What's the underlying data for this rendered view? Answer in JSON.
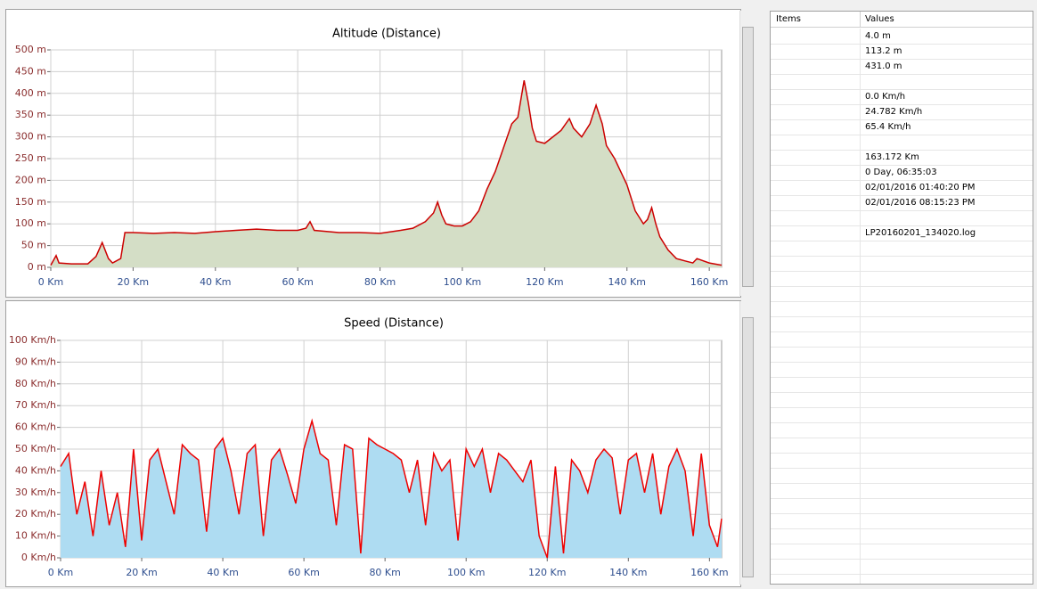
{
  "chart_data": [
    {
      "type": "area",
      "title": "Altitude (Distance)",
      "line_color": "#cc0000",
      "fill_color": "#d4dec6",
      "grid": true,
      "x": [
        0,
        1.3,
        2,
        5,
        9,
        11,
        12.5,
        14,
        15,
        17,
        18,
        20,
        25,
        30,
        35,
        40,
        45,
        50,
        55,
        60,
        62,
        63,
        64,
        70,
        75,
        80,
        85,
        88,
        91,
        93,
        94,
        95,
        96,
        98,
        100,
        102,
        104,
        106,
        108,
        110,
        112,
        113.5,
        115,
        116,
        117,
        118,
        120,
        122,
        124,
        126,
        127,
        129,
        131,
        132.5,
        134,
        135,
        137,
        138,
        140,
        142,
        144,
        145,
        146,
        147,
        148,
        150,
        152,
        154,
        156,
        157,
        160,
        163
      ],
      "values": [
        5,
        27,
        10,
        8,
        8,
        25,
        57,
        20,
        10,
        20,
        80,
        80,
        78,
        80,
        78,
        82,
        85,
        88,
        85,
        85,
        90,
        105,
        85,
        80,
        80,
        78,
        85,
        90,
        105,
        125,
        150,
        120,
        100,
        95,
        95,
        105,
        130,
        180,
        220,
        275,
        330,
        345,
        430,
        380,
        320,
        290,
        285,
        300,
        315,
        342,
        320,
        300,
        330,
        373,
        330,
        280,
        250,
        230,
        190,
        130,
        100,
        110,
        137,
        100,
        70,
        40,
        20,
        15,
        10,
        20,
        10,
        5
      ],
      "xlim": [
        0,
        163
      ],
      "ylim": [
        0,
        500
      ],
      "xticks": [
        {
          "value": 0,
          "label": "0 Km"
        },
        {
          "value": 20,
          "label": "20 Km"
        },
        {
          "value": 40,
          "label": "40 Km"
        },
        {
          "value": 60,
          "label": "60 Km"
        },
        {
          "value": 80,
          "label": "80 Km"
        },
        {
          "value": 100,
          "label": "100 Km"
        },
        {
          "value": 120,
          "label": "120 Km"
        },
        {
          "value": 140,
          "label": "140 Km"
        },
        {
          "value": 160,
          "label": "160 Km"
        }
      ],
      "yticks": [
        {
          "value": 0,
          "label": "0 m"
        },
        {
          "value": 50,
          "label": "50 m"
        },
        {
          "value": 100,
          "label": "100 m"
        },
        {
          "value": 150,
          "label": "150 m"
        },
        {
          "value": 200,
          "label": "200 m"
        },
        {
          "value": 250,
          "label": "250 m"
        },
        {
          "value": 300,
          "label": "300 m"
        },
        {
          "value": 350,
          "label": "350 m"
        },
        {
          "value": 400,
          "label": "400 m"
        },
        {
          "value": 450,
          "label": "450 m"
        },
        {
          "value": 500,
          "label": "500 m"
        }
      ]
    },
    {
      "type": "area",
      "title": "Speed (Distance)",
      "line_color": "#ee0000",
      "fill_color": "#aedcf2",
      "grid": true,
      "x": [
        0,
        2,
        4,
        6,
        8,
        10,
        12,
        14,
        16,
        18,
        20,
        22,
        24,
        26,
        28,
        30,
        32,
        34,
        36,
        38,
        40,
        42,
        44,
        46,
        48,
        50,
        52,
        54,
        56,
        58,
        60,
        62,
        64,
        66,
        68,
        70,
        72,
        74,
        76,
        78,
        80,
        82,
        84,
        86,
        88,
        90,
        92,
        94,
        96,
        98,
        100,
        102,
        104,
        106,
        108,
        110,
        112,
        114,
        116,
        118,
        120,
        122,
        124,
        126,
        128,
        130,
        132,
        134,
        136,
        138,
        140,
        142,
        144,
        146,
        148,
        150,
        152,
        154,
        156,
        158,
        160,
        162,
        163
      ],
      "values": [
        42,
        48,
        20,
        35,
        10,
        40,
        15,
        30,
        5,
        50,
        8,
        45,
        50,
        35,
        20,
        52,
        48,
        45,
        12,
        50,
        55,
        40,
        20,
        48,
        52,
        10,
        45,
        50,
        38,
        25,
        50,
        63,
        48,
        45,
        15,
        52,
        50,
        2,
        55,
        52,
        50,
        48,
        45,
        30,
        45,
        15,
        48,
        40,
        45,
        8,
        50,
        42,
        50,
        30,
        48,
        45,
        40,
        35,
        45,
        10,
        0,
        42,
        2,
        45,
        40,
        30,
        45,
        50,
        46,
        20,
        45,
        48,
        30,
        48,
        20,
        42,
        50,
        40,
        10,
        48,
        15,
        5,
        18
      ],
      "xlim": [
        0,
        163
      ],
      "ylim": [
        0,
        100
      ],
      "xticks": [
        {
          "value": 0,
          "label": "0 Km"
        },
        {
          "value": 20,
          "label": "20 Km"
        },
        {
          "value": 40,
          "label": "40 Km"
        },
        {
          "value": 60,
          "label": "60 Km"
        },
        {
          "value": 80,
          "label": "80 Km"
        },
        {
          "value": 100,
          "label": "100 Km"
        },
        {
          "value": 120,
          "label": "120 Km"
        },
        {
          "value": 140,
          "label": "140 Km"
        },
        {
          "value": 160,
          "label": "160 Km"
        }
      ],
      "yticks": [
        {
          "value": 0,
          "label": "0 Km/h"
        },
        {
          "value": 10,
          "label": "10 Km/h"
        },
        {
          "value": 20,
          "label": "20 Km/h"
        },
        {
          "value": 30,
          "label": "30 Km/h"
        },
        {
          "value": 40,
          "label": "40 Km/h"
        },
        {
          "value": 50,
          "label": "50 Km/h"
        },
        {
          "value": 60,
          "label": "60 Km/h"
        },
        {
          "value": 70,
          "label": "70 Km/h"
        },
        {
          "value": 80,
          "label": "80 Km/h"
        },
        {
          "value": 90,
          "label": "90 Km/h"
        },
        {
          "value": 100,
          "label": "100 Km/h"
        }
      ]
    }
  ],
  "table": {
    "header": [
      "Items",
      "Values"
    ],
    "groups": [
      [
        "4.0 m",
        "113.2 m",
        "431.0 m"
      ],
      [
        "0.0 Km/h",
        "24.782 Km/h",
        "65.4 Km/h"
      ],
      [
        "163.172 Km",
        "0 Day, 06:35:03",
        "02/01/2016 01:40:20 PM",
        "02/01/2016 08:15:23 PM"
      ],
      [
        "LP20160201_134020.log"
      ]
    ]
  }
}
